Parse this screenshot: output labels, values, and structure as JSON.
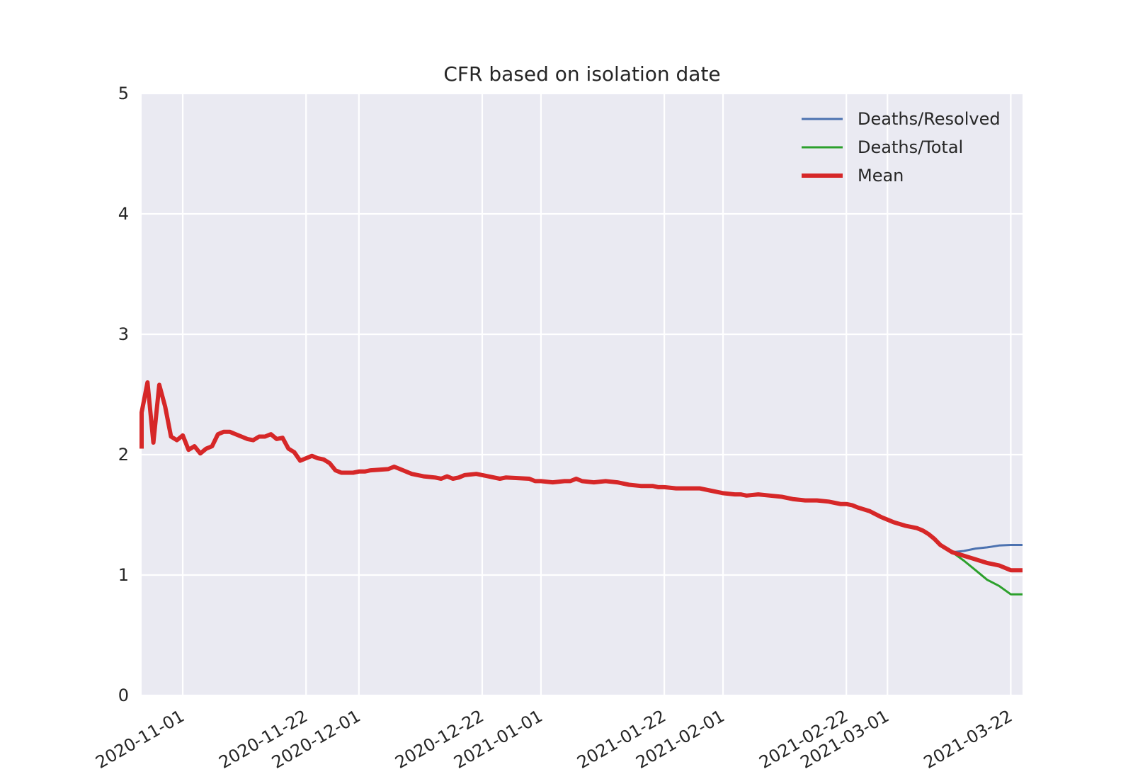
{
  "chart_data": {
    "type": "line",
    "title": "CFR based on isolation date",
    "xlabel": "",
    "ylabel": "",
    "x_range": [
      "2020-10-25",
      "2021-03-24"
    ],
    "ylim": [
      0,
      5
    ],
    "yticks": [
      0,
      1,
      2,
      3,
      4,
      5
    ],
    "xticks": [
      "2020-11-01",
      "2020-11-22",
      "2020-12-01",
      "2020-12-22",
      "2021-01-01",
      "2021-01-22",
      "2021-02-01",
      "2021-02-22",
      "2021-03-01",
      "2021-03-22"
    ],
    "grid": true,
    "legend_position": "top-right",
    "series": [
      {
        "name": "Deaths/Resolved",
        "color": "#4c72b0",
        "points": [
          [
            "2021-03-12",
            1.19
          ],
          [
            "2021-03-14",
            1.2
          ],
          [
            "2021-03-16",
            1.22
          ],
          [
            "2021-03-18",
            1.23
          ],
          [
            "2021-03-20",
            1.245
          ],
          [
            "2021-03-22",
            1.25
          ],
          [
            "2021-03-24",
            1.25
          ]
        ]
      },
      {
        "name": "Deaths/Total",
        "color": "#2ca02c",
        "points": [
          [
            "2021-03-12",
            1.19
          ],
          [
            "2021-03-14",
            1.12
          ],
          [
            "2021-03-16",
            1.04
          ],
          [
            "2021-03-18",
            0.96
          ],
          [
            "2021-03-20",
            0.91
          ],
          [
            "2021-03-22",
            0.84
          ],
          [
            "2021-03-24",
            0.84
          ]
        ]
      },
      {
        "name": "Mean",
        "color": "#d62728",
        "points": [
          [
            "2020-10-25",
            2.05
          ],
          [
            "2020-10-25",
            2.35
          ],
          [
            "2020-10-26",
            2.6
          ],
          [
            "2020-10-27",
            2.1
          ],
          [
            "2020-10-28",
            2.58
          ],
          [
            "2020-10-29",
            2.4
          ],
          [
            "2020-10-30",
            2.15
          ],
          [
            "2020-10-31",
            2.12
          ],
          [
            "2020-11-01",
            2.16
          ],
          [
            "2020-11-02",
            2.04
          ],
          [
            "2020-11-03",
            2.07
          ],
          [
            "2020-11-04",
            2.01
          ],
          [
            "2020-11-05",
            2.05
          ],
          [
            "2020-11-06",
            2.07
          ],
          [
            "2020-11-07",
            2.17
          ],
          [
            "2020-11-08",
            2.19
          ],
          [
            "2020-11-09",
            2.19
          ],
          [
            "2020-11-10",
            2.17
          ],
          [
            "2020-11-11",
            2.15
          ],
          [
            "2020-11-12",
            2.13
          ],
          [
            "2020-11-13",
            2.12
          ],
          [
            "2020-11-14",
            2.15
          ],
          [
            "2020-11-15",
            2.15
          ],
          [
            "2020-11-16",
            2.17
          ],
          [
            "2020-11-17",
            2.13
          ],
          [
            "2020-11-18",
            2.14
          ],
          [
            "2020-11-19",
            2.05
          ],
          [
            "2020-11-20",
            2.02
          ],
          [
            "2020-11-21",
            1.95
          ],
          [
            "2020-11-22",
            1.97
          ],
          [
            "2020-11-23",
            1.99
          ],
          [
            "2020-11-24",
            1.97
          ],
          [
            "2020-11-25",
            1.96
          ],
          [
            "2020-11-26",
            1.93
          ],
          [
            "2020-11-27",
            1.87
          ],
          [
            "2020-11-28",
            1.85
          ],
          [
            "2020-11-30",
            1.85
          ],
          [
            "2020-12-01",
            1.86
          ],
          [
            "2020-12-02",
            1.86
          ],
          [
            "2020-12-03",
            1.87
          ],
          [
            "2020-12-06",
            1.88
          ],
          [
            "2020-12-07",
            1.9
          ],
          [
            "2020-12-08",
            1.88
          ],
          [
            "2020-12-10",
            1.84
          ],
          [
            "2020-12-12",
            1.82
          ],
          [
            "2020-12-14",
            1.81
          ],
          [
            "2020-12-15",
            1.8
          ],
          [
            "2020-12-16",
            1.82
          ],
          [
            "2020-12-17",
            1.8
          ],
          [
            "2020-12-18",
            1.81
          ],
          [
            "2020-12-19",
            1.83
          ],
          [
            "2020-12-21",
            1.84
          ],
          [
            "2020-12-23",
            1.82
          ],
          [
            "2020-12-25",
            1.8
          ],
          [
            "2020-12-26",
            1.81
          ],
          [
            "2020-12-30",
            1.8
          ],
          [
            "2020-12-31",
            1.78
          ],
          [
            "2021-01-01",
            1.78
          ],
          [
            "2021-01-03",
            1.77
          ],
          [
            "2021-01-05",
            1.78
          ],
          [
            "2021-01-06",
            1.78
          ],
          [
            "2021-01-07",
            1.8
          ],
          [
            "2021-01-08",
            1.78
          ],
          [
            "2021-01-10",
            1.77
          ],
          [
            "2021-01-12",
            1.78
          ],
          [
            "2021-01-14",
            1.77
          ],
          [
            "2021-01-16",
            1.75
          ],
          [
            "2021-01-18",
            1.74
          ],
          [
            "2021-01-20",
            1.74
          ],
          [
            "2021-01-21",
            1.73
          ],
          [
            "2021-01-22",
            1.73
          ],
          [
            "2021-01-24",
            1.72
          ],
          [
            "2021-01-26",
            1.72
          ],
          [
            "2021-01-28",
            1.72
          ],
          [
            "2021-01-30",
            1.7
          ],
          [
            "2021-02-01",
            1.68
          ],
          [
            "2021-02-03",
            1.67
          ],
          [
            "2021-02-04",
            1.67
          ],
          [
            "2021-02-05",
            1.66
          ],
          [
            "2021-02-07",
            1.67
          ],
          [
            "2021-02-09",
            1.66
          ],
          [
            "2021-02-11",
            1.65
          ],
          [
            "2021-02-13",
            1.63
          ],
          [
            "2021-02-15",
            1.62
          ],
          [
            "2021-02-17",
            1.62
          ],
          [
            "2021-02-19",
            1.61
          ],
          [
            "2021-02-20",
            1.6
          ],
          [
            "2021-02-21",
            1.59
          ],
          [
            "2021-02-22",
            1.59
          ],
          [
            "2021-02-23",
            1.58
          ],
          [
            "2021-02-24",
            1.56
          ],
          [
            "2021-02-26",
            1.53
          ],
          [
            "2021-02-28",
            1.48
          ],
          [
            "2021-03-01",
            1.46
          ],
          [
            "2021-03-02",
            1.44
          ],
          [
            "2021-03-04",
            1.41
          ],
          [
            "2021-03-06",
            1.39
          ],
          [
            "2021-03-07",
            1.37
          ],
          [
            "2021-03-08",
            1.34
          ],
          [
            "2021-03-09",
            1.3
          ],
          [
            "2021-03-10",
            1.25
          ],
          [
            "2021-03-12",
            1.19
          ],
          [
            "2021-03-14",
            1.16
          ],
          [
            "2021-03-16",
            1.13
          ],
          [
            "2021-03-18",
            1.1
          ],
          [
            "2021-03-20",
            1.08
          ],
          [
            "2021-03-22",
            1.04
          ],
          [
            "2021-03-24",
            1.04
          ]
        ]
      }
    ]
  }
}
